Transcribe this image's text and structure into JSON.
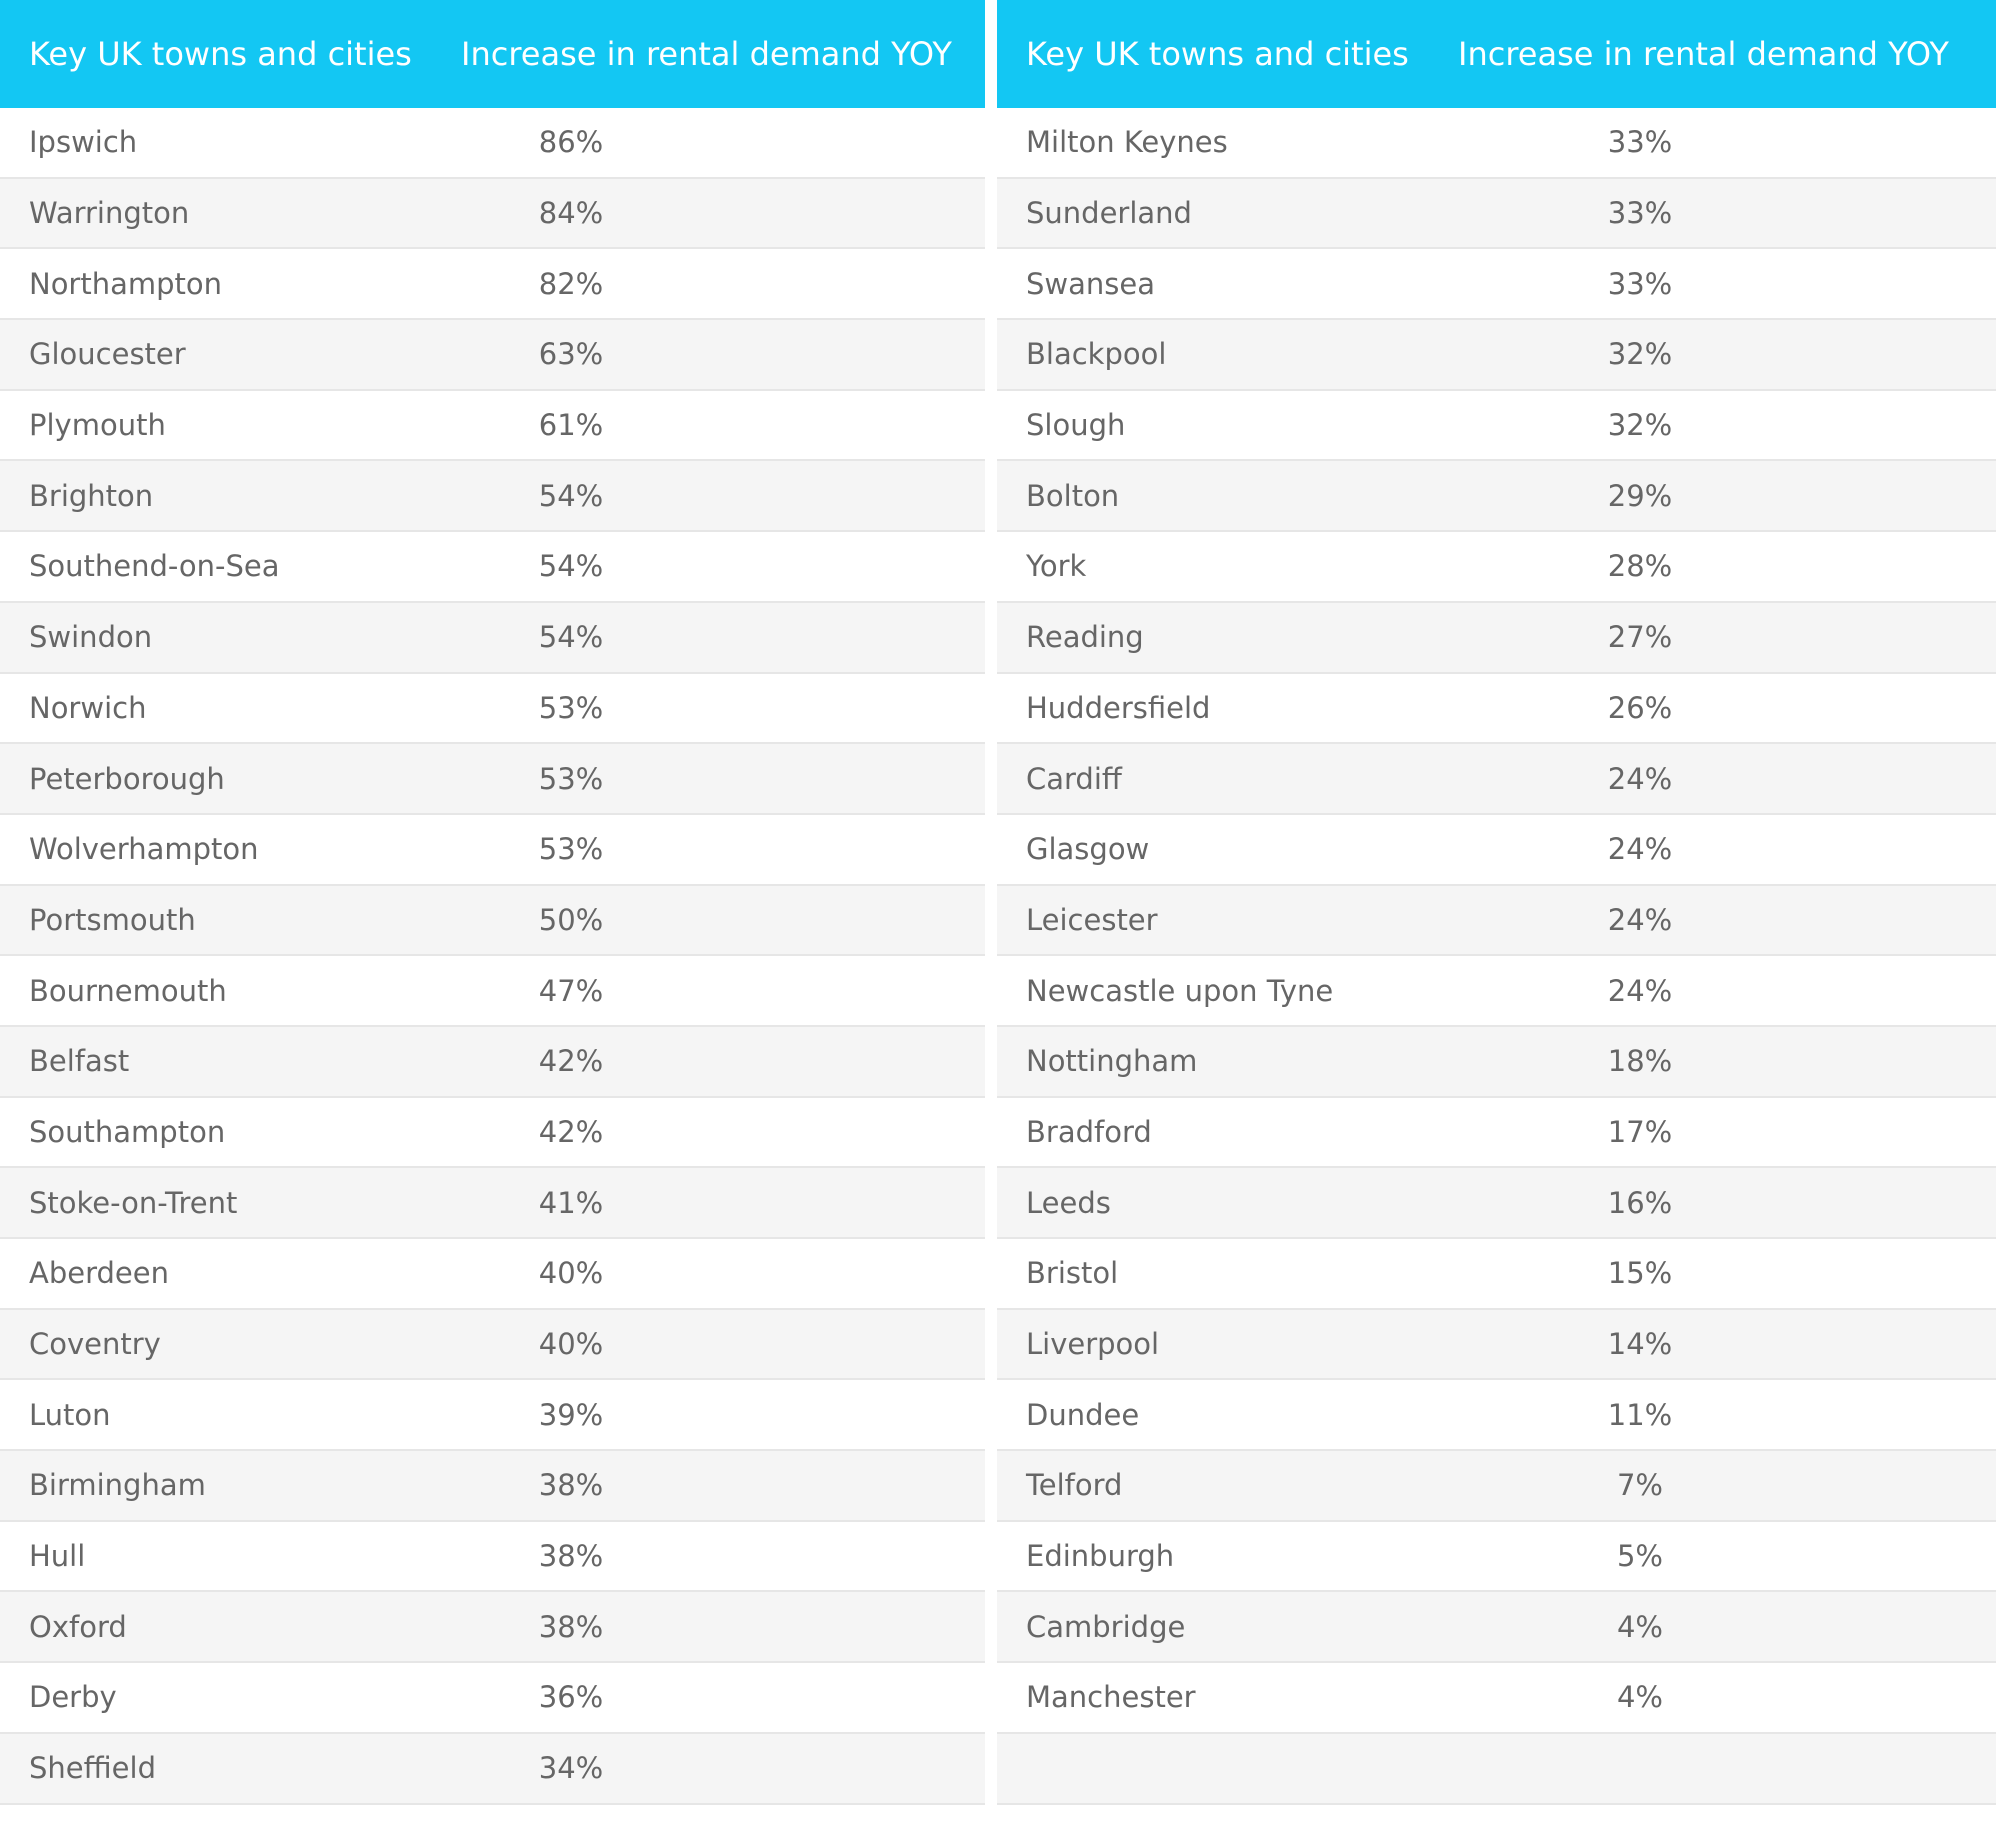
{
  "chart_data": [
    {
      "type": "table",
      "columns": [
        "Key UK towns and cities",
        "Increase in rental demand YOY"
      ],
      "rows": [
        [
          "Ipswich",
          "86%"
        ],
        [
          "Warrington",
          "84%"
        ],
        [
          "Northampton",
          "82%"
        ],
        [
          "Gloucester",
          "63%"
        ],
        [
          "Plymouth",
          "61%"
        ],
        [
          "Brighton",
          "54%"
        ],
        [
          "Southend-on-Sea",
          "54%"
        ],
        [
          "Swindon",
          "54%"
        ],
        [
          "Norwich",
          "53%"
        ],
        [
          "Peterborough",
          "53%"
        ],
        [
          "Wolverhampton",
          "53%"
        ],
        [
          "Portsmouth",
          "50%"
        ],
        [
          "Bournemouth",
          "47%"
        ],
        [
          "Belfast",
          "42%"
        ],
        [
          "Southampton",
          "42%"
        ],
        [
          "Stoke-on-Trent",
          "41%"
        ],
        [
          "Aberdeen",
          "40%"
        ],
        [
          "Coventry",
          "40%"
        ],
        [
          "Luton",
          "39%"
        ],
        [
          "Birmingham",
          "38%"
        ],
        [
          "Hull",
          "38%"
        ],
        [
          "Oxford",
          "38%"
        ],
        [
          "Derby",
          "36%"
        ],
        [
          "Sheffield",
          "34%"
        ]
      ]
    },
    {
      "type": "table",
      "columns": [
        "Key UK towns and cities",
        "Increase in rental demand YOY"
      ],
      "rows": [
        [
          "Milton Keynes",
          "33%"
        ],
        [
          "Sunderland",
          "33%"
        ],
        [
          "Swansea",
          "33%"
        ],
        [
          "Blackpool",
          "32%"
        ],
        [
          "Slough",
          "32%"
        ],
        [
          "Bolton",
          "29%"
        ],
        [
          "York",
          "28%"
        ],
        [
          "Reading",
          "27%"
        ],
        [
          "Huddersfield",
          "26%"
        ],
        [
          "Cardiff",
          "24%"
        ],
        [
          "Glasgow",
          "24%"
        ],
        [
          "Leicester",
          "24%"
        ],
        [
          "Newcastle upon Tyne",
          "24%"
        ],
        [
          "Nottingham",
          "18%"
        ],
        [
          "Bradford",
          "17%"
        ],
        [
          "Leeds",
          "16%"
        ],
        [
          "Bristol",
          "15%"
        ],
        [
          "Liverpool",
          "14%"
        ],
        [
          "Dundee",
          "11%"
        ],
        [
          "Telford",
          "7%"
        ],
        [
          "Edinburgh",
          "5%"
        ],
        [
          "Cambridge",
          "4%"
        ],
        [
          "Manchester",
          "4%"
        ],
        [
          "",
          ""
        ]
      ]
    }
  ],
  "colors": {
    "header_background": "#13c7f3",
    "header_text": "#ffffff",
    "row_text": "#666666",
    "row_alt_background": "#f5f5f5",
    "row_divider": "#e6e6e6"
  }
}
